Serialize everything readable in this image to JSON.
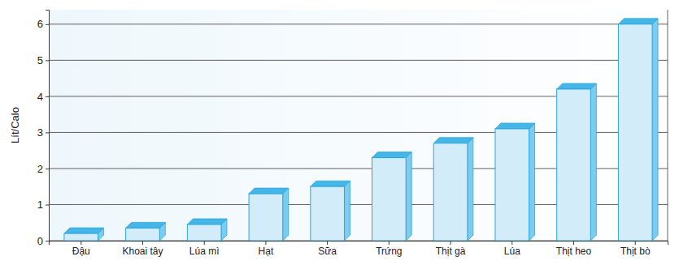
{
  "chart_data": {
    "type": "bar",
    "y_label": "Lít/Calo",
    "categories": [
      "Đậu",
      "Khoai tây",
      "Lúa mì",
      "Hạt",
      "Sữa",
      "Trứng",
      "Thịt gà",
      "Lúa",
      "Thịt heo",
      "Thịt bò"
    ],
    "values": [
      0.2,
      0.35,
      0.45,
      1.3,
      1.5,
      2.3,
      2.7,
      3.1,
      4.2,
      6.0
    ],
    "color": "#d3ecf9",
    "ylim": [
      0,
      6.4
    ],
    "yticks": [
      0,
      1,
      2,
      3,
      4,
      5,
      6
    ],
    "grid": true
  }
}
